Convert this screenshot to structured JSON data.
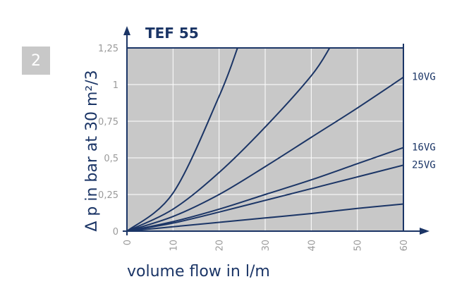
{
  "page_number": "2",
  "chart_data": {
    "type": "line",
    "title": "TEF 55",
    "xlabel": "volume flow in l/m",
    "ylabel": "Δ p in bar at 30 m²/3",
    "xlim": [
      0,
      60
    ],
    "ylim": [
      0,
      1.25
    ],
    "x_ticks": [
      0,
      10,
      20,
      30,
      40,
      50,
      60
    ],
    "x_tick_labels": [
      "0",
      "10",
      "20",
      "30",
      "40",
      "50",
      "60"
    ],
    "y_ticks": [
      0,
      0.25,
      0.5,
      0.75,
      1,
      1.25
    ],
    "y_tick_labels": [
      "0",
      "0,25",
      "0,5",
      "0,75",
      "1",
      "1,25"
    ],
    "grid": true,
    "colors": {
      "plot_background": "#c8c8c8",
      "line": "#1b3566",
      "axis": "#1b3566",
      "grid": "#ffffff",
      "tick_label": "#9a9a9a"
    },
    "series": [
      {
        "label": "",
        "values": [
          [
            0,
            0
          ],
          [
            10,
            0.26
          ],
          [
            20,
            0.92
          ],
          [
            24,
            1.25
          ]
        ]
      },
      {
        "label": "",
        "values": [
          [
            0,
            0
          ],
          [
            10,
            0.15
          ],
          [
            20,
            0.4
          ],
          [
            30,
            0.71
          ],
          [
            40,
            1.06
          ],
          [
            44,
            1.25
          ]
        ]
      },
      {
        "label": "10VG",
        "values": [
          [
            0,
            0
          ],
          [
            10,
            0.1
          ],
          [
            20,
            0.25
          ],
          [
            30,
            0.44
          ],
          [
            40,
            0.64
          ],
          [
            50,
            0.84
          ],
          [
            60,
            1.05
          ]
        ]
      },
      {
        "label": "16VG",
        "values": [
          [
            0,
            0
          ],
          [
            10,
            0.065
          ],
          [
            20,
            0.15
          ],
          [
            30,
            0.25
          ],
          [
            40,
            0.35
          ],
          [
            50,
            0.46
          ],
          [
            60,
            0.57
          ]
        ]
      },
      {
        "label": "25VG",
        "values": [
          [
            0,
            0
          ],
          [
            10,
            0.055
          ],
          [
            20,
            0.13
          ],
          [
            30,
            0.21
          ],
          [
            40,
            0.29
          ],
          [
            50,
            0.37
          ],
          [
            60,
            0.45
          ]
        ]
      },
      {
        "label": "",
        "values": [
          [
            0,
            0
          ],
          [
            10,
            0.03
          ],
          [
            20,
            0.06
          ],
          [
            30,
            0.09
          ],
          [
            40,
            0.12
          ],
          [
            50,
            0.155
          ],
          [
            60,
            0.185
          ]
        ]
      }
    ]
  }
}
